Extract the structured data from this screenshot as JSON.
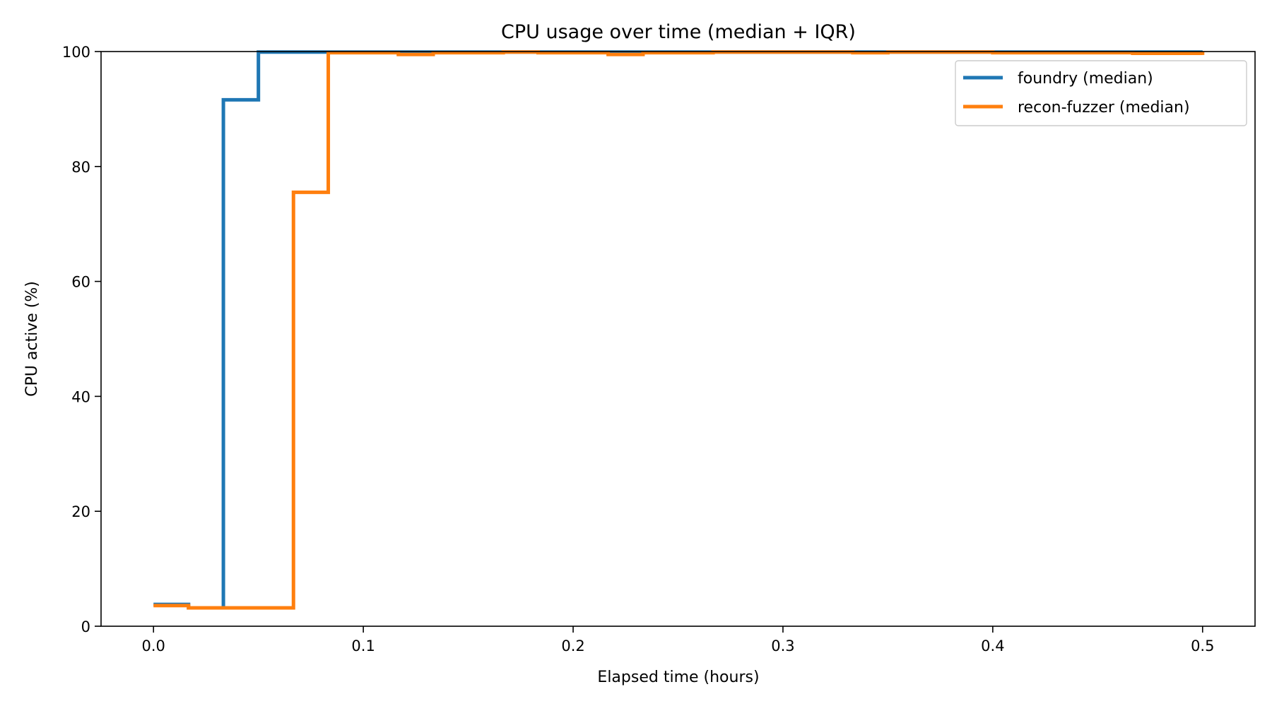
{
  "chart_data": {
    "type": "line",
    "step": "post",
    "title": "CPU usage over time (median + IQR)",
    "xlabel": "Elapsed time (hours)",
    "ylabel": "CPU active (%)",
    "xlim": [
      -0.025,
      0.525
    ],
    "ylim": [
      0,
      100
    ],
    "xticks": [
      0.0,
      0.1,
      0.2,
      0.3,
      0.4,
      0.5
    ],
    "xtick_labels": [
      "0.0",
      "0.1",
      "0.2",
      "0.3",
      "0.4",
      "0.5"
    ],
    "yticks": [
      0,
      20,
      40,
      60,
      80,
      100
    ],
    "ytick_labels": [
      "0",
      "20",
      "40",
      "60",
      "80",
      "100"
    ],
    "grid": false,
    "legend_position": "top-right",
    "series": [
      {
        "name": "foundry (median)",
        "color": "#1f77b4",
        "x": [
          0.0,
          0.0167,
          0.0333,
          0.05,
          0.0667,
          0.0833,
          0.1,
          0.1167,
          0.1333,
          0.15,
          0.1667,
          0.1833,
          0.2,
          0.2167,
          0.2333,
          0.25,
          0.2667,
          0.2833,
          0.3,
          0.3167,
          0.3333,
          0.35,
          0.3667,
          0.3833,
          0.4,
          0.4167,
          0.4333,
          0.45,
          0.4667,
          0.4833,
          0.5
        ],
        "y": [
          3.8,
          3.2,
          91.6,
          99.9,
          99.9,
          99.9,
          99.9,
          99.9,
          99.9,
          99.9,
          99.9,
          99.9,
          99.9,
          99.9,
          99.9,
          99.9,
          99.9,
          99.9,
          99.9,
          99.9,
          99.9,
          99.9,
          99.9,
          99.9,
          99.9,
          99.9,
          99.9,
          99.9,
          99.9,
          99.9,
          99.9
        ]
      },
      {
        "name": "recon-fuzzer (median)",
        "color": "#ff7f0e",
        "x": [
          0.0,
          0.0167,
          0.0333,
          0.05,
          0.0667,
          0.0833,
          0.1,
          0.1167,
          0.1333,
          0.15,
          0.1667,
          0.1833,
          0.2,
          0.2167,
          0.2333,
          0.25,
          0.2667,
          0.2833,
          0.3,
          0.3167,
          0.3333,
          0.35,
          0.3667,
          0.3833,
          0.4,
          0.4167,
          0.4333,
          0.45,
          0.4667,
          0.4833,
          0.5
        ],
        "y": [
          3.6,
          3.2,
          3.2,
          3.2,
          75.5,
          99.8,
          99.8,
          99.5,
          99.8,
          99.8,
          99.9,
          99.8,
          99.8,
          99.5,
          99.8,
          99.8,
          99.9,
          99.9,
          99.9,
          99.9,
          99.8,
          99.9,
          99.9,
          99.9,
          99.8,
          99.8,
          99.8,
          99.8,
          99.7,
          99.7,
          99.4
        ]
      }
    ]
  }
}
